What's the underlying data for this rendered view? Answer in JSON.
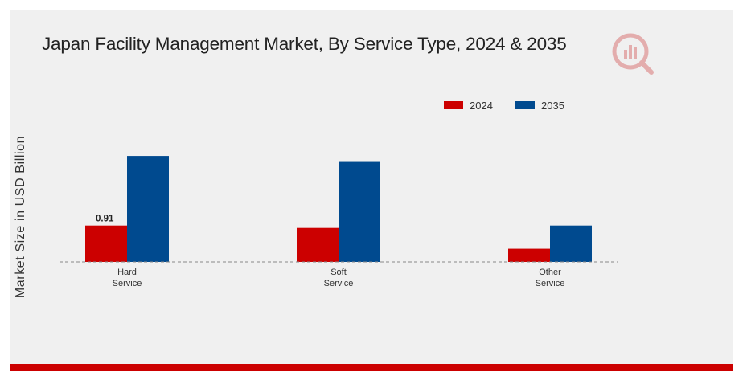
{
  "chart_data": {
    "type": "bar",
    "title": "Japan Facility Management Market, By Service Type, 2024 & 2035",
    "ylabel": "Market Size in USD Billion",
    "xlabel": "",
    "categories": [
      [
        "Hard",
        "Service"
      ],
      [
        "Soft",
        "Service"
      ],
      [
        "Other",
        "Service"
      ]
    ],
    "series": [
      {
        "name": "2024",
        "color": "#cc0000",
        "values": [
          0.91,
          0.85,
          0.33
        ]
      },
      {
        "name": "2035",
        "color": "#004a8f",
        "values": [
          2.65,
          2.5,
          0.91
        ]
      }
    ],
    "data_labels": [
      {
        "series": 0,
        "category": 0,
        "text": "0.91"
      }
    ],
    "ylim": [
      0,
      4.5
    ],
    "legend_position": "top-right",
    "grid": false,
    "baseline_style": "dashed"
  },
  "logo_icon": "market-research-logo-icon",
  "colors": {
    "panel_background": "#f0f0f0",
    "accent_bar": "#cc0000"
  }
}
